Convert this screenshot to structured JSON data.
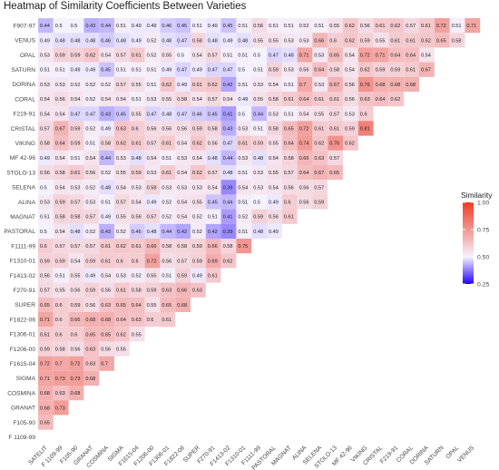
{
  "chart_data": {
    "type": "heatmap",
    "title": "Heatmap of Similarity Coefficients Between Varieties",
    "xlabel": "",
    "ylabel": "",
    "rows": [
      "F907-97",
      "VENUS",
      "OPAL",
      "SATURN",
      "DORINA",
      "CORAL",
      "F219-91",
      "CRISTAL",
      "VIKING",
      "MF 42-96",
      "STOLO-13",
      "SELENA",
      "ALINA",
      "MAGNAT",
      "PASTORAL",
      "F1111-99",
      "F1310-01",
      "F1413-02",
      "F270-91",
      "SUPER",
      "F1822-06",
      "F1306-01",
      "F1206-00",
      "F1615-04",
      "SIGMA",
      "COSMINA",
      "GRANAT",
      "F105-90",
      "F 1109-99"
    ],
    "columns": [
      "SATELIT",
      "F 1109-99",
      "F105-90",
      "GRANAT",
      "COSMINA",
      "SIGMA",
      "F1615-04",
      "F1206-00",
      "F1306-01",
      "F1822-06",
      "SUPER",
      "F270-91",
      "F1413-02",
      "F1310-01",
      "F1111-99",
      "PASTORAL",
      "MAGNAT",
      "ALINA",
      "SELENA",
      "STOLO-13",
      "MF 42-96",
      "VIKING",
      "CRISTAL",
      "F219-91",
      "CORAL",
      "DORINA",
      "SATURN",
      "OPAL",
      "VENUS"
    ],
    "values": [
      [
        0.44,
        0.5,
        0.5,
        0.43,
        0.44,
        0.51,
        0.49,
        0.49,
        0.46,
        0.45,
        0.51,
        0.49,
        0.45,
        0.51,
        0.56,
        0.51,
        0.51,
        0.52,
        0.51,
        0.55,
        0.62,
        0.56,
        0.61,
        0.62,
        0.57,
        0.61,
        0.72,
        0.51,
        0.71
      ],
      [
        0.49,
        0.48,
        0.48,
        0.48,
        0.46,
        0.48,
        0.49,
        0.52,
        0.48,
        0.47,
        0.58,
        0.48,
        0.49,
        0.48,
        0.55,
        0.55,
        0.53,
        0.53,
        0.66,
        0.6,
        0.62,
        0.59,
        0.55,
        0.61,
        0.61,
        0.62,
        0.65,
        0.58
      ],
      [
        0.53,
        0.59,
        0.59,
        0.62,
        0.54,
        0.57,
        0.61,
        0.52,
        0.55,
        0.5,
        0.54,
        0.57,
        0.51,
        0.51,
        0.5,
        0.47,
        0.48,
        0.71,
        0.53,
        0.65,
        0.54,
        0.72,
        0.71,
        0.64,
        0.64,
        0.54
      ],
      [
        0.51,
        0.51,
        0.49,
        0.49,
        0.45,
        0.51,
        0.51,
        0.51,
        0.49,
        0.47,
        0.49,
        0.47,
        0.47,
        0.5,
        0.51,
        0.59,
        0.53,
        0.56,
        0.64,
        0.58,
        0.54,
        0.62,
        0.59,
        0.59,
        0.61,
        0.67
      ],
      [
        0.53,
        0.53,
        0.52,
        0.52,
        0.52,
        0.57,
        0.55,
        0.51,
        0.62,
        0.49,
        0.61,
        0.62,
        0.42,
        0.51,
        0.53,
        0.54,
        0.51,
        0.7,
        0.53,
        0.67,
        0.56,
        0.76,
        0.68,
        0.68,
        0.68
      ],
      [
        0.54,
        0.56,
        0.54,
        0.52,
        0.54,
        0.54,
        0.51,
        0.53,
        0.55,
        0.58,
        0.54,
        0.57,
        0.54,
        0.49,
        0.55,
        0.58,
        0.61,
        0.64,
        0.61,
        0.61,
        0.56,
        0.63,
        0.64,
        0.62
      ],
      [
        0.54,
        0.54,
        0.47,
        0.47,
        0.43,
        0.45,
        0.55,
        0.47,
        0.48,
        0.47,
        0.46,
        0.45,
        0.41,
        0.5,
        0.44,
        0.53,
        0.51,
        0.54,
        0.55,
        0.57,
        0.53,
        0.6
      ],
      [
        0.57,
        0.67,
        0.59,
        0.52,
        0.49,
        0.63,
        0.6,
        0.56,
        0.56,
        0.56,
        0.59,
        0.58,
        0.43,
        0.53,
        0.51,
        0.58,
        0.65,
        0.72,
        0.61,
        0.61,
        0.59,
        0.81
      ],
      [
        0.58,
        0.64,
        0.59,
        0.51,
        0.58,
        0.62,
        0.61,
        0.57,
        0.61,
        0.54,
        0.62,
        0.56,
        0.47,
        0.61,
        0.59,
        0.55,
        0.64,
        0.74,
        0.62,
        0.76,
        0.62
      ],
      [
        0.49,
        0.54,
        0.51,
        0.54,
        0.44,
        0.53,
        0.48,
        0.54,
        0.51,
        0.53,
        0.54,
        0.48,
        0.44,
        0.53,
        0.48,
        0.54,
        0.58,
        0.66,
        0.63,
        0.57
      ],
      [
        0.56,
        0.58,
        0.61,
        0.56,
        0.52,
        0.55,
        0.59,
        0.53,
        0.61,
        0.54,
        0.62,
        0.57,
        0.48,
        0.51,
        0.53,
        0.55,
        0.57,
        0.64,
        0.67,
        0.65
      ],
      [
        0.5,
        0.54,
        0.53,
        0.52,
        0.48,
        0.54,
        0.53,
        0.58,
        0.53,
        0.53,
        0.53,
        0.54,
        0.39,
        0.54,
        0.53,
        0.54,
        0.56,
        0.56,
        0.57
      ],
      [
        0.53,
        0.59,
        0.57,
        0.53,
        0.51,
        0.57,
        0.54,
        0.49,
        0.52,
        0.54,
        0.55,
        0.45,
        0.44,
        0.51,
        0.5,
        0.49,
        0.6,
        0.56,
        0.59
      ],
      [
        0.51,
        0.58,
        0.58,
        0.57,
        0.49,
        0.55,
        0.56,
        0.57,
        0.52,
        0.54,
        0.52,
        0.51,
        0.41,
        0.52,
        0.59,
        0.56,
        0.61
      ],
      [
        0.5,
        0.54,
        0.48,
        0.52,
        0.43,
        0.52,
        0.46,
        0.48,
        0.44,
        0.42,
        0.52,
        0.42,
        0.39,
        0.51,
        0.48,
        0.49
      ],
      [
        0.6,
        0.57,
        0.57,
        0.57,
        0.61,
        0.62,
        0.61,
        0.66,
        0.58,
        0.58,
        0.59,
        0.66,
        0.58,
        0.75
      ],
      [
        0.59,
        0.59,
        0.54,
        0.59,
        0.61,
        0.6,
        0.6,
        0.72,
        0.56,
        0.57,
        0.59,
        0.69,
        0.62
      ],
      [
        0.56,
        0.51,
        0.55,
        0.49,
        0.54,
        0.53,
        0.52,
        0.55,
        0.51,
        0.59,
        0.49,
        0.61
      ],
      [
        0.57,
        0.55,
        0.56,
        0.59,
        0.56,
        0.61,
        0.58,
        0.59,
        0.63,
        0.66,
        0.63
      ],
      [
        0.65,
        0.6,
        0.59,
        0.56,
        0.63,
        0.65,
        0.64,
        0.55,
        0.65,
        0.68
      ],
      [
        0.71,
        0.6,
        0.66,
        0.68,
        0.68,
        0.64,
        0.63,
        0.6,
        0.61
      ],
      [
        0.61,
        0.6,
        0.6,
        0.65,
        0.65,
        0.62,
        0.55
      ],
      [
        0.59,
        0.58,
        0.56,
        0.63,
        0.56,
        0.55
      ],
      [
        0.72,
        0.7,
        0.72,
        0.63,
        0.7
      ],
      [
        0.71,
        0.73,
        0.73,
        0.68
      ],
      [
        0.68,
        0.63,
        0.68
      ],
      [
        0.68,
        0.73
      ],
      [
        0.65
      ],
      []
    ],
    "color_scale": {
      "low": "#2400ff",
      "mid": "#f5f2ff",
      "high": "#f03a22",
      "min": 0.25,
      "mid_value": 0.5,
      "max": 1.0
    },
    "legend": {
      "title": "Similarity",
      "ticks": [
        "1.00",
        "0.75",
        "0.50",
        "0.25"
      ],
      "position": "right"
    }
  }
}
